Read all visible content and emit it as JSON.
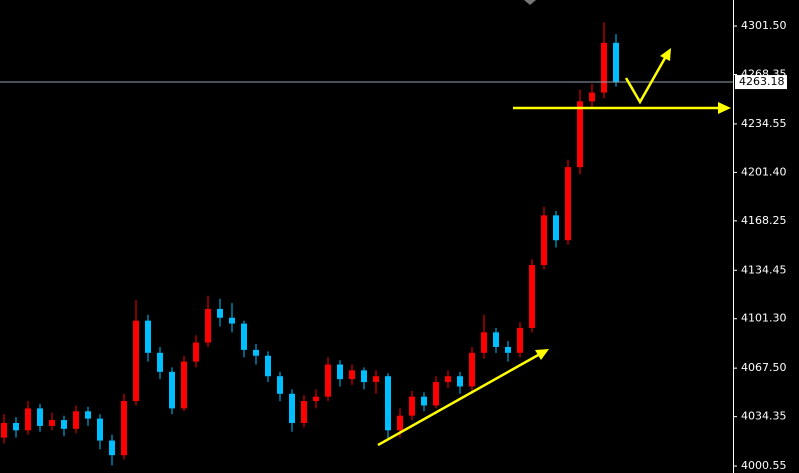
{
  "chart_data": {
    "type": "candlestick",
    "open": [
      4020,
      4030,
      4025,
      4040,
      4028,
      4032,
      4026,
      4038,
      4033,
      4018,
      4008,
      4045,
      4100,
      4078,
      4065,
      4040,
      4072,
      4085,
      4108,
      4102,
      4098,
      4080,
      4076,
      4062,
      4050,
      4030,
      4045,
      4048,
      4070,
      4060,
      4066,
      4058,
      4062,
      4025,
      4035,
      4048,
      4042,
      4058,
      4062,
      4055,
      4078,
      4092,
      4082,
      4078,
      4095,
      4138,
      4172,
      4155,
      4205,
      4250,
      4256,
      4290
    ],
    "high": [
      4036,
      4034,
      4045,
      4043,
      4037,
      4035,
      4042,
      4041,
      4036,
      4022,
      4050,
      4114,
      4104,
      4082,
      4068,
      4076,
      4090,
      4117,
      4115,
      4112,
      4100,
      4084,
      4079,
      4065,
      4053,
      4049,
      4053,
      4075,
      4073,
      4070,
      4068,
      4066,
      4064,
      4040,
      4052,
      4051,
      4062,
      4066,
      4065,
      4082,
      4104,
      4095,
      4086,
      4099,
      4142,
      4178,
      4175,
      4210,
      4258,
      4262,
      4304,
      4296
    ],
    "low": [
      4016,
      4020,
      4022,
      4024,
      4025,
      4021,
      4023,
      4028,
      4012,
      4001,
      4005,
      4042,
      4072,
      4060,
      4036,
      4038,
      4068,
      4082,
      4096,
      4092,
      4075,
      4070,
      4058,
      4045,
      4024,
      4027,
      4040,
      4045,
      4055,
      4056,
      4053,
      4050,
      4018,
      4020,
      4032,
      4038,
      4040,
      4054,
      4050,
      4052,
      4074,
      4078,
      4072,
      4075,
      4092,
      4135,
      4150,
      4152,
      4200,
      4245,
      4252,
      4260
    ],
    "close": [
      4030,
      4025,
      4040,
      4028,
      4032,
      4026,
      4038,
      4033,
      4018,
      4008,
      4045,
      4100,
      4078,
      4065,
      4040,
      4072,
      4085,
      4108,
      4102,
      4098,
      4080,
      4076,
      4062,
      4050,
      4030,
      4045,
      4048,
      4070,
      4060,
      4066,
      4058,
      4062,
      4025,
      4035,
      4048,
      4042,
      4058,
      4062,
      4055,
      4078,
      4092,
      4082,
      4078,
      4095,
      4138,
      4172,
      4155,
      4205,
      4250,
      4256,
      4290,
      4263.18
    ],
    "up_color": "#ff0000",
    "down_color": "#00bfff",
    "last_price": 4263.18,
    "last_price_color": "#8fa0b4",
    "ylim": [
      3995.8,
      4319.3
    ],
    "yticks": [
      4000.55,
      4034.35,
      {
        "value": 4067.5,
        "label": "4067.50"
      },
      {
        "value": 4101.3,
        "label": "4101.30"
      },
      4134.45,
      4168.25,
      {
        "value": 4201.4,
        "label": "4201.40"
      },
      4234.55,
      4268.35,
      {
        "value": 4301.5,
        "label": "4301.50"
      }
    ]
  }
}
